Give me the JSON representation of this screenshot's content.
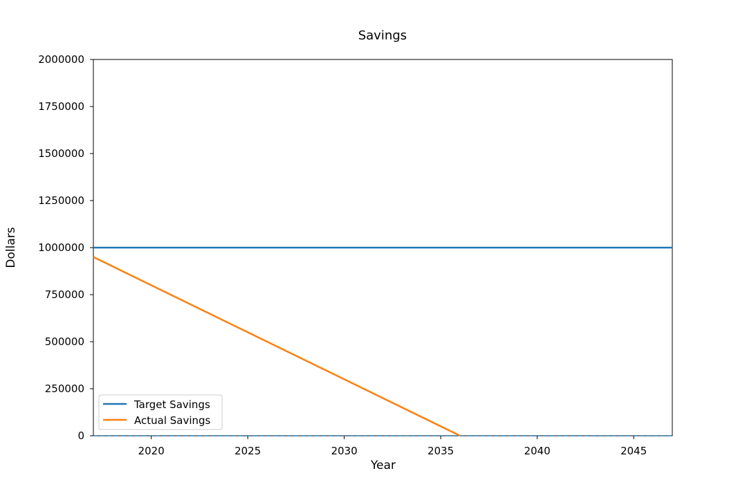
{
  "chart_data": {
    "type": "line",
    "title": "Savings",
    "xlabel": "Year",
    "ylabel": "Dollars",
    "xlim": [
      2017,
      2047
    ],
    "ylim": [
      0,
      2000000
    ],
    "x_ticks": [
      2020,
      2025,
      2030,
      2035,
      2040,
      2045
    ],
    "y_ticks": [
      0,
      250000,
      500000,
      750000,
      1000000,
      1250000,
      1500000,
      1750000,
      2000000
    ],
    "grid": false,
    "legend_position": "bottom-left",
    "series": [
      {
        "name": "Target Savings",
        "color": "#1f77b4",
        "x": [
          2017,
          2047
        ],
        "y": [
          1000000,
          1000000
        ]
      },
      {
        "name": "Actual Savings",
        "color": "#ff7f0e",
        "x": [
          2017,
          2036
        ],
        "y": [
          950000,
          0
        ]
      }
    ],
    "reference_lines": [
      {
        "y": 0,
        "style": "dashed",
        "color": "#1f77b4"
      }
    ]
  }
}
